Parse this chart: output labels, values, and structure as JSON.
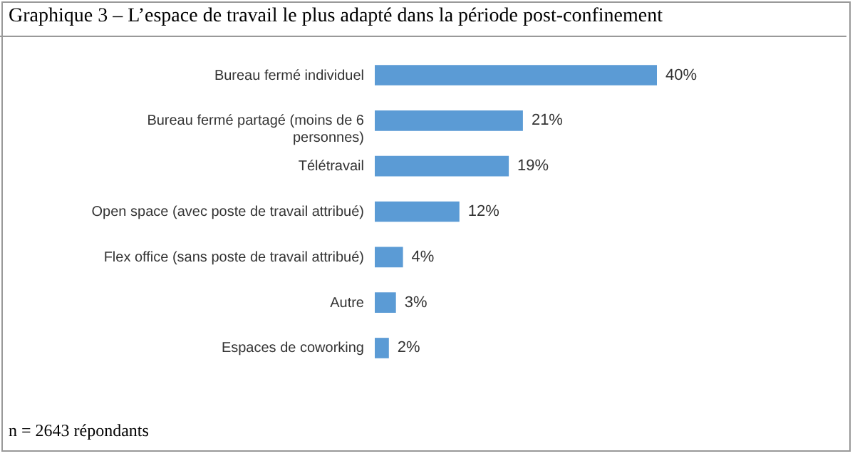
{
  "chart_data": {
    "type": "bar",
    "orientation": "horizontal",
    "title": "Graphique 3 – L’espace de travail le plus adapté dans la période post-confinement",
    "categories": [
      "Bureau fermé individuel",
      "Bureau fermé partagé (moins de 6 personnes)",
      "Télétravail",
      "Open space (avec poste de travail attribué)",
      "Flex office (sans poste de travail attribué)",
      "Autre",
      "Espaces de coworking"
    ],
    "values": [
      40,
      21,
      19,
      12,
      4,
      3,
      2
    ],
    "value_labels": [
      "40%",
      "21%",
      "19%",
      "12%",
      "4%",
      "3%",
      "2%"
    ],
    "color": "#5b9bd5",
    "annotations": [
      "n = 2643 répondants"
    ]
  }
}
